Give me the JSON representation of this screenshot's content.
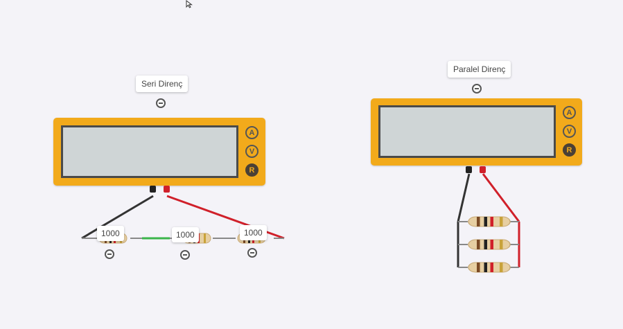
{
  "series_circuit": {
    "title": "Seri Direnç",
    "meter": {
      "modes": [
        "A",
        "V",
        "R"
      ],
      "active_mode": "R"
    },
    "resistors": [
      {
        "value": "1000"
      },
      {
        "value": "1000"
      },
      {
        "value": "1000"
      }
    ]
  },
  "parallel_circuit": {
    "title": "Paralel Direnç",
    "meter": {
      "modes": [
        "A",
        "V",
        "R"
      ],
      "active_mode": "R"
    }
  },
  "colors": {
    "meter_body": "#f2aa1b",
    "screen": "#cfd5d6",
    "wire_black": "#333333",
    "wire_red": "#d0202a",
    "wire_green": "#3ab54a"
  }
}
